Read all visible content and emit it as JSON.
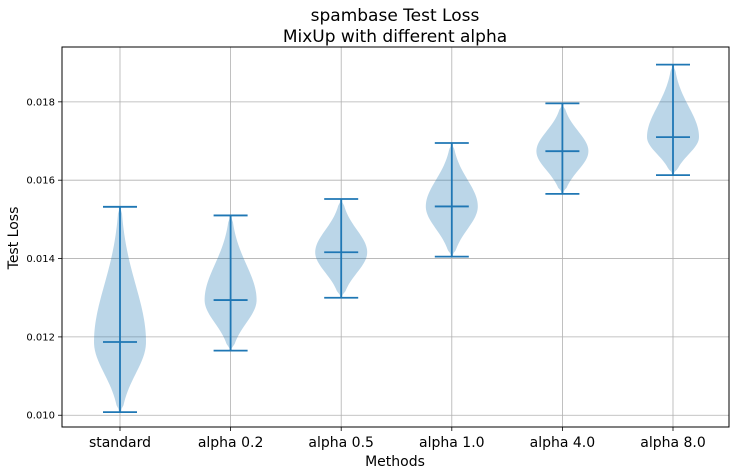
{
  "chart_data": {
    "type": "violin",
    "title": [
      "spambase Test Loss",
      "MixUp with different alpha"
    ],
    "xlabel": "Methods",
    "ylabel": "Test Loss",
    "categories": [
      "standard",
      "alpha 0.2",
      "alpha 0.5",
      "alpha 1.0",
      "alpha 4.0",
      "alpha 8.0"
    ],
    "ylim": [
      0.0097,
      0.0194
    ],
    "yticks": [
      0.01,
      0.012,
      0.014,
      0.016,
      0.018
    ],
    "ytick_labels": [
      "0.010",
      "0.012",
      "0.014",
      "0.016",
      "0.018"
    ],
    "grid": true,
    "color": "#1f77b4",
    "series": [
      {
        "category": "standard",
        "min": 0.01008,
        "median": 0.01187,
        "max": 0.01532
      },
      {
        "category": "alpha 0.2",
        "min": 0.01165,
        "median": 0.01294,
        "max": 0.0151
      },
      {
        "category": "alpha 0.5",
        "min": 0.013,
        "median": 0.01416,
        "max": 0.01552
      },
      {
        "category": "alpha 1.0",
        "min": 0.01405,
        "median": 0.01533,
        "max": 0.01695
      },
      {
        "category": "alpha 4.0",
        "min": 0.01565,
        "median": 0.01674,
        "max": 0.01796
      },
      {
        "category": "alpha 8.0",
        "min": 0.01613,
        "median": 0.0171,
        "max": 0.01895
      }
    ]
  }
}
